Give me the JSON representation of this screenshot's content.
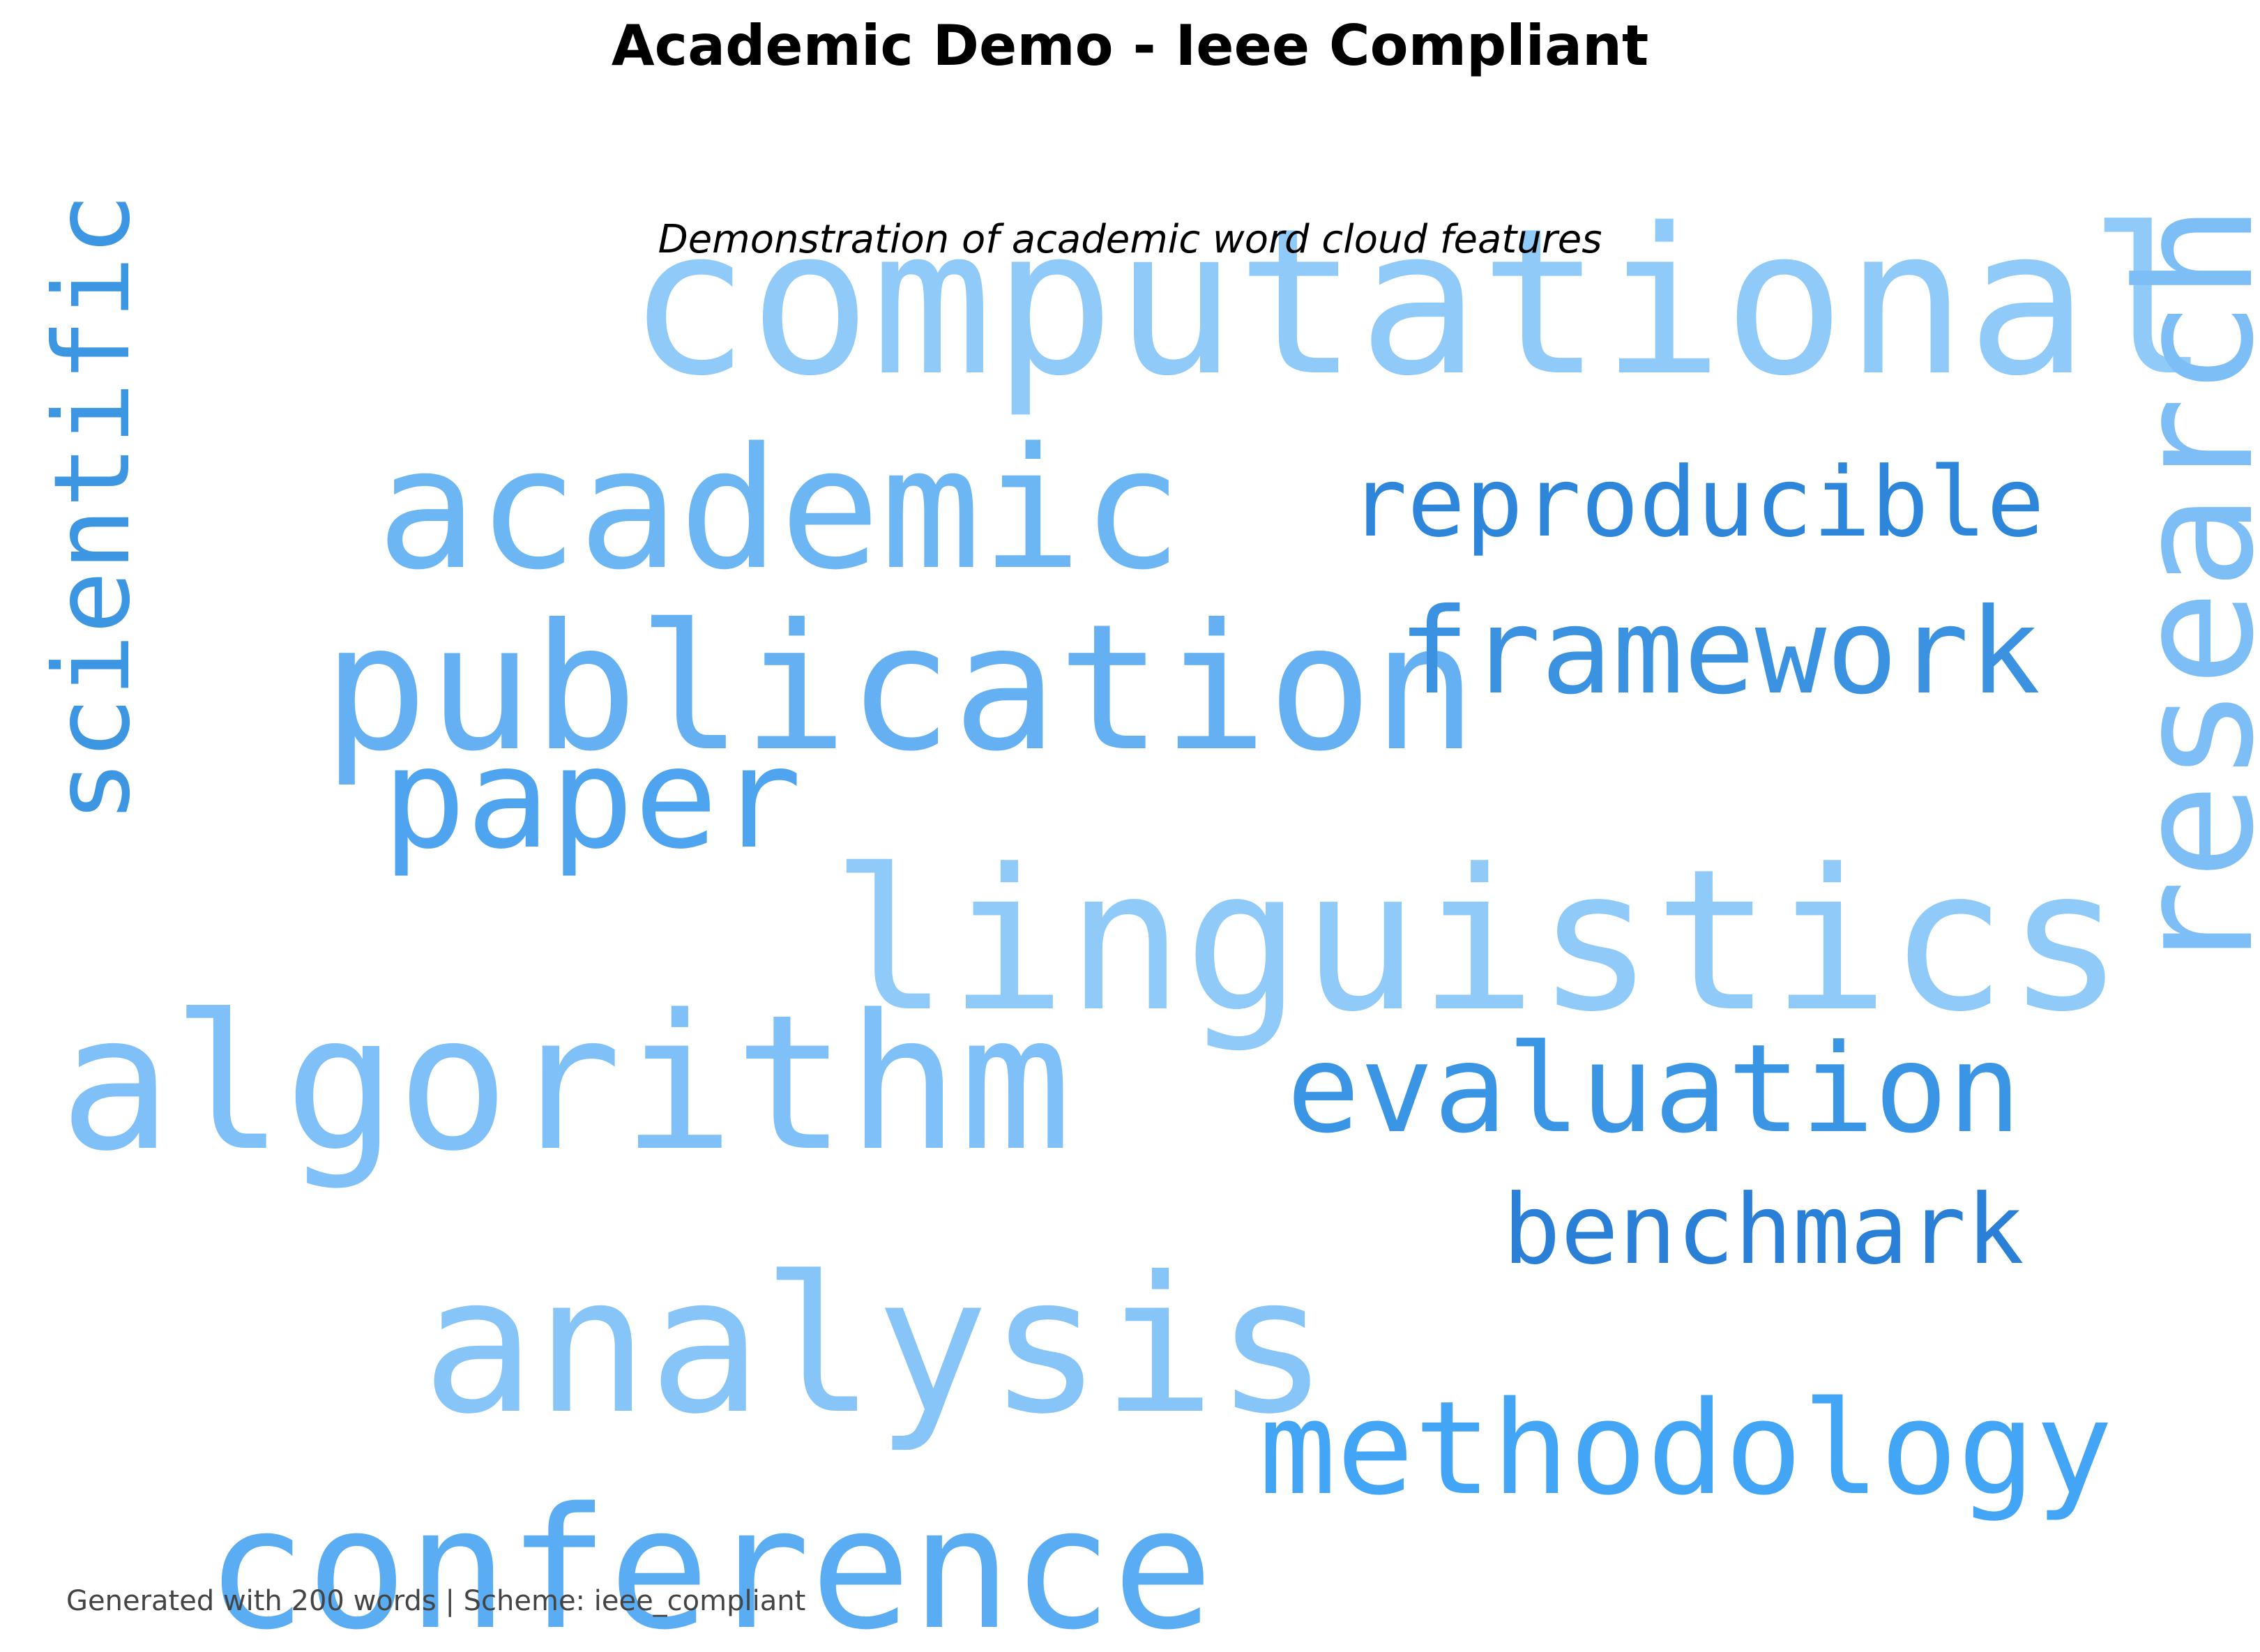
{
  "title": "Academic Demo - Ieee Compliant",
  "subtitle": "Demonstration of academic word cloud features",
  "footer": "Generated with 200 words | Scheme: ieee_compliant",
  "chart_data": {
    "type": "wordcloud",
    "words": [
      {
        "text": "computational",
        "color": "#90CAF9",
        "orientation": "horizontal"
      },
      {
        "text": "research",
        "color": "#7CBEF5",
        "orientation": "vertical"
      },
      {
        "text": "scientific",
        "color": "#3D96E2",
        "orientation": "vertical"
      },
      {
        "text": "academic",
        "color": "#6DB6F4",
        "orientation": "horizontal"
      },
      {
        "text": "reproducible",
        "color": "#2E86DB",
        "orientation": "horizontal"
      },
      {
        "text": "publication",
        "color": "#64B0F2",
        "orientation": "horizontal"
      },
      {
        "text": "framework",
        "color": "#3A92E0",
        "orientation": "horizontal"
      },
      {
        "text": "paper",
        "color": "#4FA4EF",
        "orientation": "horizontal"
      },
      {
        "text": "linguistics",
        "color": "#90CAF9",
        "orientation": "horizontal"
      },
      {
        "text": "algorithm",
        "color": "#7EC0F7",
        "orientation": "horizontal"
      },
      {
        "text": "evaluation",
        "color": "#3A95E5",
        "orientation": "horizontal"
      },
      {
        "text": "benchmark",
        "color": "#2A80D6",
        "orientation": "horizontal"
      },
      {
        "text": "analysis",
        "color": "#87C5F8",
        "orientation": "horizontal"
      },
      {
        "text": "methodology",
        "color": "#42A5F5",
        "orientation": "horizontal"
      },
      {
        "text": "conference",
        "color": "#5AADF3",
        "orientation": "horizontal"
      }
    ]
  }
}
